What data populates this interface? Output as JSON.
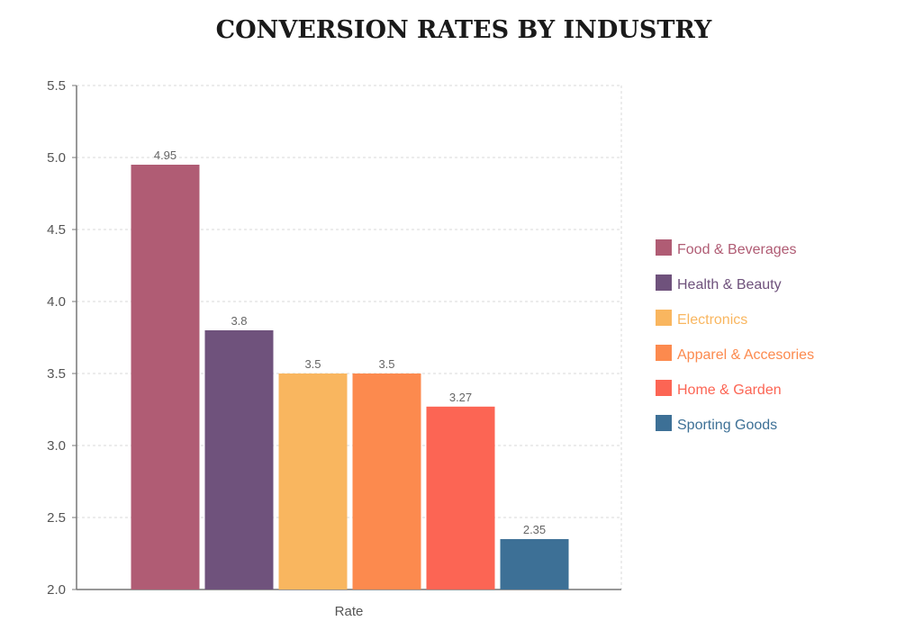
{
  "chart_data": {
    "type": "bar",
    "title": "CONVERSION RATES BY INDUSTRY",
    "xlabel": "",
    "ylabel": "",
    "categories": [
      "Rate"
    ],
    "series": [
      {
        "name": "Food & Beverages",
        "values": [
          4.95
        ],
        "value_label": "4.95",
        "color": "#b05c74"
      },
      {
        "name": "Health & Beauty",
        "values": [
          3.8
        ],
        "value_label": "3.8",
        "color": "#6f527c"
      },
      {
        "name": "Electronics",
        "values": [
          3.5
        ],
        "value_label": "3.5",
        "color": "#f9b65f"
      },
      {
        "name": "Apparel & Accesories",
        "values": [
          3.5
        ],
        "value_label": "3.5",
        "color": "#fc8a4e"
      },
      {
        "name": "Home & Garden",
        "values": [
          3.27
        ],
        "value_label": "3.27",
        "color": "#fc6554"
      },
      {
        "name": "Sporting Goods",
        "values": [
          2.35
        ],
        "value_label": "2.35",
        "color": "#3d7096"
      }
    ],
    "ylim": [
      2.0,
      5.5
    ],
    "yticks": [
      "2.0",
      "2.5",
      "3.0",
      "3.5",
      "4.0",
      "4.5",
      "5.0",
      "5.5"
    ],
    "grid": true,
    "legend_position": "right"
  }
}
